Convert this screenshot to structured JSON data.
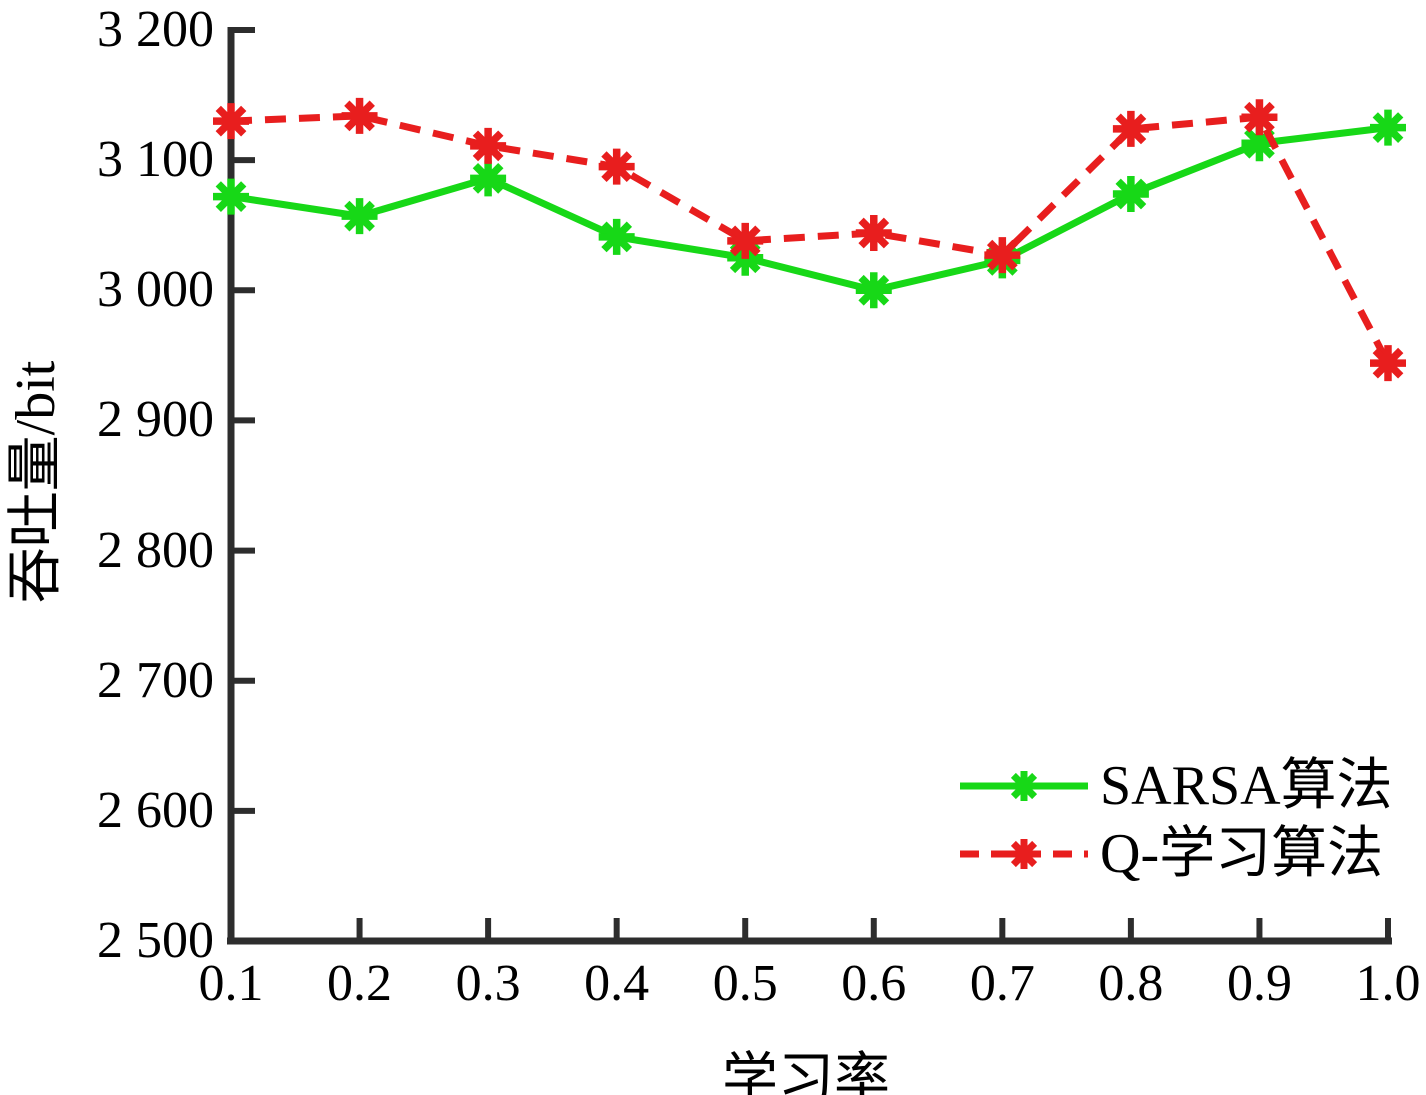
{
  "chart_data": {
    "type": "line",
    "title": "",
    "xlabel": "学习率",
    "ylabel": "吞吐量/bit",
    "xlim": [
      0.1,
      1.0
    ],
    "ylim": [
      2500,
      3200
    ],
    "grid": false,
    "legend_position": "lower-right",
    "x": [
      0.1,
      0.2,
      0.3,
      0.4,
      0.5,
      0.6,
      0.7,
      0.8,
      0.9,
      1.0
    ],
    "series": [
      {
        "name": "SARSA算法",
        "color": "#17d817",
        "line_style": "solid",
        "marker": "asterisk",
        "values": [
          3072,
          3057,
          3086,
          3041,
          3025,
          3000,
          3023,
          3074,
          3113,
          3125
        ]
      },
      {
        "name": "Q-学习算法",
        "color": "#e81e1e",
        "line_style": "dashed",
        "marker": "asterisk",
        "values": [
          3130,
          3134,
          3111,
          3095,
          3038,
          3044,
          3027,
          3124,
          3133,
          2944
        ]
      }
    ],
    "yticks": [
      {
        "value": 2500,
        "label": "2 500"
      },
      {
        "value": 2600,
        "label": "2 600"
      },
      {
        "value": 2700,
        "label": "2 700"
      },
      {
        "value": 2800,
        "label": "2 800"
      },
      {
        "value": 2900,
        "label": "2 900"
      },
      {
        "value": 3000,
        "label": "3 000"
      },
      {
        "value": 3100,
        "label": "3 100"
      },
      {
        "value": 3200,
        "label": "3 200"
      }
    ],
    "xticks": [
      {
        "value": 0.1,
        "label": "0.1"
      },
      {
        "value": 0.2,
        "label": "0.2"
      },
      {
        "value": 0.3,
        "label": "0.3"
      },
      {
        "value": 0.4,
        "label": "0.4"
      },
      {
        "value": 0.5,
        "label": "0.5"
      },
      {
        "value": 0.6,
        "label": "0.6"
      },
      {
        "value": 0.7,
        "label": "0.7"
      },
      {
        "value": 0.8,
        "label": "0.8"
      },
      {
        "value": 0.9,
        "label": "0.9"
      },
      {
        "value": 1.0,
        "label": "1.0"
      }
    ],
    "axis_color": "#2d2d2d",
    "text_color": "#000000"
  }
}
